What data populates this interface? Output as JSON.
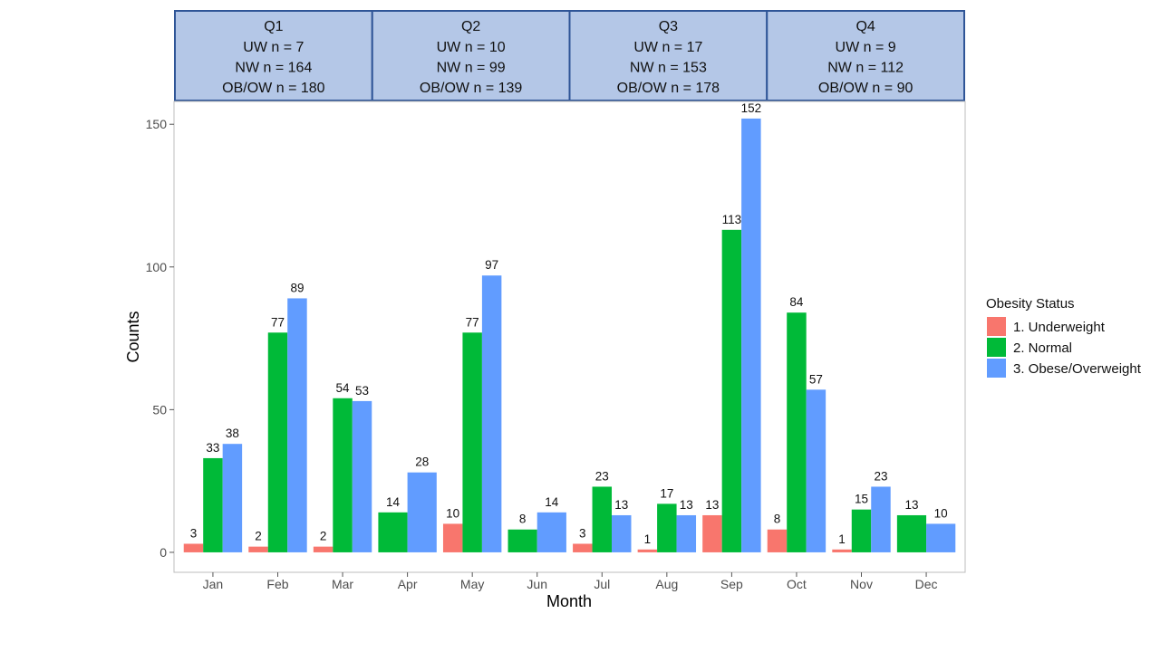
{
  "chart_data": {
    "type": "bar",
    "xlabel": "Month",
    "ylabel": "Counts",
    "ylim": [
      -7,
      158
    ],
    "yticks": [
      0,
      50,
      100,
      150
    ],
    "grid": false,
    "legend_position": "right",
    "legend_title": "Obesity Status",
    "categories": [
      "Jan",
      "Feb",
      "Mar",
      "Apr",
      "May",
      "Jun",
      "Jul",
      "Aug",
      "Sep",
      "Oct",
      "Nov",
      "Dec"
    ],
    "series": [
      {
        "name": "1. Underweight",
        "color": "#F8766D",
        "values": [
          3,
          2,
          2,
          null,
          10,
          null,
          3,
          1,
          13,
          8,
          1,
          null
        ]
      },
      {
        "name": "2. Normal",
        "color": "#00BA38",
        "values": [
          33,
          77,
          54,
          14,
          77,
          8,
          23,
          17,
          113,
          84,
          15,
          13
        ]
      },
      {
        "name": "3. Obese/Overweight",
        "color": "#619CFF",
        "values": [
          38,
          89,
          53,
          28,
          97,
          14,
          13,
          13,
          152,
          57,
          23,
          10
        ]
      }
    ],
    "quarter_panels": [
      {
        "title": "Q1",
        "lines": [
          "UW n = 7",
          "NW n = 164",
          "OB/OW n = 180"
        ]
      },
      {
        "title": "Q2",
        "lines": [
          "UW n = 10",
          "NW n = 99",
          "OB/OW n = 139"
        ]
      },
      {
        "title": "Q3",
        "lines": [
          "UW n = 17",
          "NW n = 153",
          "OB/OW n = 178"
        ]
      },
      {
        "title": "Q4",
        "lines": [
          "UW n = 9",
          "NW n = 112",
          "OB/OW n = 90"
        ]
      }
    ],
    "quarter_fill": "#B4C7E7",
    "quarter_border": "#2F5597"
  }
}
